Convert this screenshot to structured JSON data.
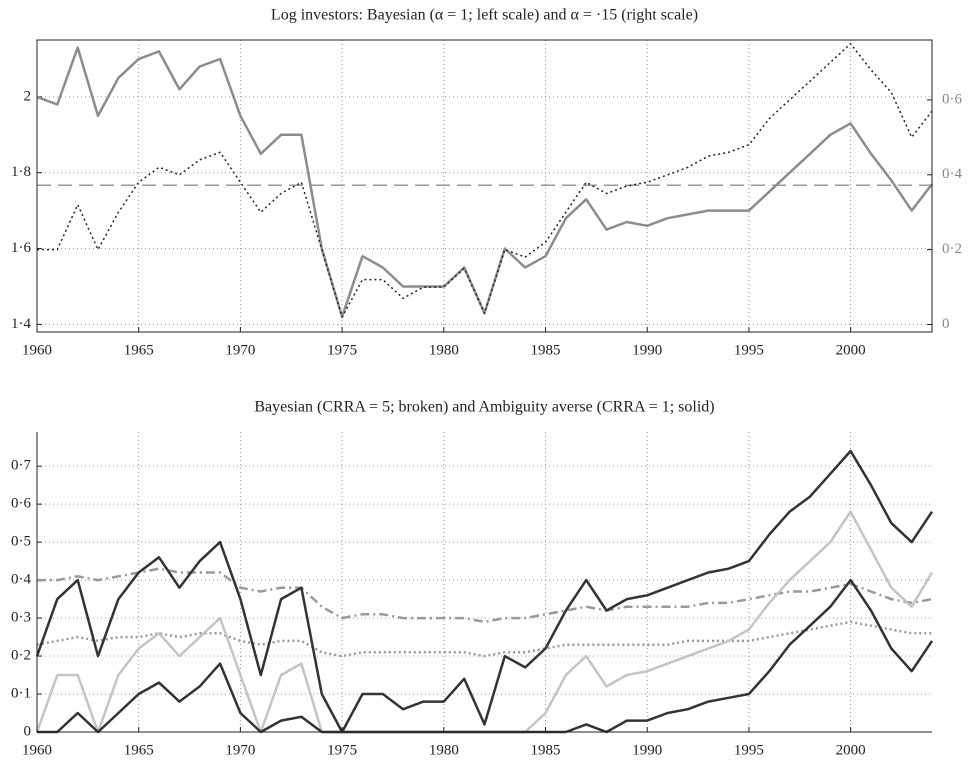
{
  "chart_data": [
    {
      "type": "line",
      "title": "Log investors: Bayesian (α = 1; left scale) and α = ·15 (right scale)",
      "box": true,
      "grid": true,
      "x": [
        1960,
        1961,
        1962,
        1963,
        1964,
        1965,
        1966,
        1967,
        1968,
        1969,
        1970,
        1971,
        1972,
        1973,
        1974,
        1975,
        1976,
        1977,
        1978,
        1979,
        1980,
        1981,
        1982,
        1983,
        1984,
        1985,
        1986,
        1987,
        1988,
        1989,
        1990,
        1991,
        1992,
        1993,
        1994,
        1995,
        1996,
        1997,
        1998,
        1999,
        2000,
        2001,
        2002,
        2003,
        2004
      ],
      "xlim": [
        1960,
        2004
      ],
      "xticks": [
        1960,
        1965,
        1970,
        1975,
        1980,
        1985,
        1990,
        1995,
        2000
      ],
      "ylim": [
        1.38,
        2.15
      ],
      "yticks": [
        {
          "value": 1.4,
          "label": "1·4"
        },
        {
          "value": 1.6,
          "label": "1·6"
        },
        {
          "value": 1.8,
          "label": "1·8"
        },
        2
      ],
      "y2lim": [
        -0.02,
        0.76
      ],
      "y2ticks": [
        0,
        {
          "value": 0.2,
          "label": "0·2"
        },
        {
          "value": 0.4,
          "label": "0·4"
        },
        {
          "value": 0.6,
          "label": "0·6"
        }
      ],
      "y2color": "#888888",
      "hline": 1.767,
      "hline_color": "#999999",
      "series": [
        {
          "color": "#8c8c8c",
          "linestyle": "solid",
          "width": 2.5,
          "values": [
            2.0,
            1.98,
            2.13,
            1.95,
            2.05,
            2.1,
            2.12,
            2.02,
            2.08,
            2.1,
            1.95,
            1.85,
            1.9,
            1.9,
            1.6,
            1.42,
            1.58,
            1.55,
            1.5,
            1.5,
            1.5,
            1.55,
            1.43,
            1.6,
            1.55,
            1.58,
            1.68,
            1.73,
            1.65,
            1.67,
            1.66,
            1.68,
            1.69,
            1.7,
            1.7,
            1.7,
            1.75,
            1.8,
            1.85,
            1.9,
            1.93,
            1.85,
            1.78,
            1.7,
            1.77
          ]
        },
        {
          "color": "#222222",
          "linestyle": "dotted",
          "width": 1.5,
          "axis": "y2",
          "values": [
            0.2,
            0.2,
            0.32,
            0.2,
            0.3,
            0.38,
            0.42,
            0.4,
            0.44,
            0.46,
            0.38,
            0.3,
            0.35,
            0.38,
            0.2,
            0.02,
            0.12,
            0.12,
            0.07,
            0.1,
            0.1,
            0.15,
            0.03,
            0.2,
            0.18,
            0.22,
            0.3,
            0.38,
            0.35,
            0.37,
            0.38,
            0.4,
            0.42,
            0.45,
            0.46,
            0.48,
            0.55,
            0.6,
            0.65,
            0.7,
            0.75,
            0.68,
            0.62,
            0.5,
            0.57
          ]
        }
      ]
    },
    {
      "type": "line",
      "title": "Bayesian (CRRA = 5; broken) and Ambiguity averse (CRRA = 1; solid)",
      "box": false,
      "grid": true,
      "x": [
        1960,
        1961,
        1962,
        1963,
        1964,
        1965,
        1966,
        1967,
        1968,
        1969,
        1970,
        1971,
        1972,
        1973,
        1974,
        1975,
        1976,
        1977,
        1978,
        1979,
        1980,
        1981,
        1982,
        1983,
        1984,
        1985,
        1986,
        1987,
        1988,
        1989,
        1990,
        1991,
        1992,
        1993,
        1994,
        1995,
        1996,
        1997,
        1998,
        1999,
        2000,
        2001,
        2002,
        2003,
        2004
      ],
      "xlim": [
        1960,
        2004
      ],
      "xticks": [
        1960,
        1965,
        1970,
        1975,
        1980,
        1985,
        1990,
        1995,
        2000
      ],
      "ylim": [
        0,
        0.79
      ],
      "yticks": [
        0,
        {
          "value": 0.1,
          "label": "0·1"
        },
        {
          "value": 0.2,
          "label": "0·2"
        },
        {
          "value": 0.3,
          "label": "0·3"
        },
        {
          "value": 0.4,
          "label": "0·4"
        },
        {
          "value": 0.5,
          "label": "0·5"
        },
        {
          "value": 0.6,
          "label": "0·6"
        },
        {
          "value": 0.7,
          "label": "0·7"
        }
      ],
      "series": [
        {
          "color": "#999999",
          "linestyle": "dashdot",
          "width": 2.5,
          "values": [
            0.4,
            0.4,
            0.41,
            0.4,
            0.41,
            0.42,
            0.43,
            0.42,
            0.42,
            0.42,
            0.38,
            0.37,
            0.38,
            0.38,
            0.33,
            0.3,
            0.31,
            0.31,
            0.3,
            0.3,
            0.3,
            0.3,
            0.29,
            0.3,
            0.3,
            0.31,
            0.32,
            0.33,
            0.32,
            0.33,
            0.33,
            0.33,
            0.33,
            0.34,
            0.34,
            0.35,
            0.36,
            0.37,
            0.37,
            0.38,
            0.39,
            0.37,
            0.35,
            0.34,
            0.35
          ]
        },
        {
          "color": "#999999",
          "linestyle": "dotted",
          "width": 2.5,
          "values": [
            0.23,
            0.24,
            0.25,
            0.24,
            0.25,
            0.25,
            0.26,
            0.25,
            0.26,
            0.26,
            0.24,
            0.23,
            0.24,
            0.24,
            0.21,
            0.2,
            0.21,
            0.21,
            0.21,
            0.21,
            0.21,
            0.21,
            0.2,
            0.21,
            0.21,
            0.22,
            0.23,
            0.23,
            0.23,
            0.23,
            0.23,
            0.23,
            0.24,
            0.24,
            0.24,
            0.24,
            0.25,
            0.26,
            0.27,
            0.28,
            0.29,
            0.28,
            0.27,
            0.26,
            0.26
          ]
        },
        {
          "color": "#c4c4c4",
          "linestyle": "solid",
          "width": 2.5,
          "values": [
            0,
            0.15,
            0.15,
            0,
            0.15,
            0.22,
            0.26,
            0.2,
            0.25,
            0.3,
            0.15,
            0,
            0.15,
            0.18,
            0,
            0,
            0,
            0,
            0,
            0,
            0,
            0,
            0,
            0,
            0,
            0.05,
            0.15,
            0.2,
            0.12,
            0.15,
            0.16,
            0.18,
            0.2,
            0.22,
            0.24,
            0.27,
            0.34,
            0.4,
            0.45,
            0.5,
            0.58,
            0.48,
            0.38,
            0.33,
            0.42
          ]
        },
        {
          "color": "#333333",
          "linestyle": "solid",
          "width": 2.5,
          "values": [
            0.2,
            0.35,
            0.4,
            0.2,
            0.35,
            0.42,
            0.46,
            0.38,
            0.45,
            0.5,
            0.35,
            0.15,
            0.35,
            0.38,
            0.1,
            0,
            0.1,
            0.1,
            0.06,
            0.08,
            0.08,
            0.14,
            0.02,
            0.2,
            0.17,
            0.22,
            0.32,
            0.4,
            0.32,
            0.35,
            0.36,
            0.38,
            0.4,
            0.42,
            0.43,
            0.45,
            0.52,
            0.58,
            0.62,
            0.68,
            0.74,
            0.65,
            0.55,
            0.5,
            0.58
          ]
        },
        {
          "color": "#333333",
          "linestyle": "solid",
          "width": 2.5,
          "values": [
            0,
            0,
            0.05,
            0,
            0.05,
            0.1,
            0.13,
            0.08,
            0.12,
            0.18,
            0.05,
            0,
            0.03,
            0.04,
            0,
            0,
            0,
            0,
            0,
            0,
            0,
            0,
            0,
            0,
            0,
            0,
            0,
            0.02,
            0,
            0.03,
            0.03,
            0.05,
            0.06,
            0.08,
            0.09,
            0.1,
            0.16,
            0.23,
            0.28,
            0.33,
            0.4,
            0.32,
            0.22,
            0.16,
            0.24
          ]
        }
      ]
    }
  ]
}
